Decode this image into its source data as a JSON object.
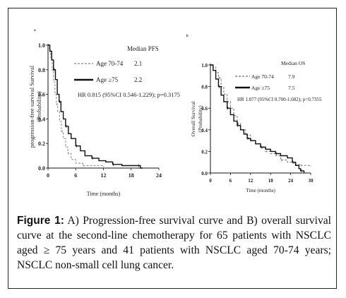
{
  "caption": {
    "label": "Figure 1:",
    "text": " A) Progression-free survival curve and B) overall survival curve at the second-line chemotherapy for 65 patients with NSCLC aged ≥ 75 years and 41 patients with NSCLC aged 70-74 years; NSCLC non-small cell lung cancer."
  },
  "chart_data": [
    {
      "type": "line",
      "panel_label": "A",
      "xlabel": "Time (months)",
      "ylabel": [
        "progression-free survival  Survival",
        "(Probability)"
      ],
      "xticks": [
        0,
        6,
        12,
        18,
        24
      ],
      "yticks": [
        0.0,
        0.2,
        0.4,
        0.6,
        0.8,
        1.0
      ],
      "ytick_labels": [
        "0.0",
        "0.2",
        "0.4",
        "0.6",
        "0.8",
        "1.0"
      ],
      "xlim": [
        0,
        24
      ],
      "ylim": [
        0,
        1
      ],
      "legend_position": "top-right",
      "legend_header": "Median PFS",
      "legend_line2_suffix": "ge ≥75",
      "hr_text": "HR 0.815 (95%CI 0.546-1.229); p=0.3175",
      "series": [
        {
          "name": "Age 70-74",
          "median_text": "2.1",
          "style": "dashed",
          "color": "#9a9a9a",
          "x": [
            0,
            0.3,
            0.6,
            0.9,
            1.2,
            1.5,
            1.8,
            2.1,
            2.5,
            2.9,
            3.3,
            3.8,
            4.3,
            5.0,
            6.0,
            7.5,
            9.5,
            12.0
          ],
          "y": [
            1.0,
            0.97,
            0.9,
            0.8,
            0.7,
            0.6,
            0.52,
            0.46,
            0.38,
            0.3,
            0.24,
            0.17,
            0.12,
            0.07,
            0.04,
            0.02,
            0.02,
            0.0
          ]
        },
        {
          "name": "Age ≥75",
          "median_text": "2.2",
          "style": "solid",
          "color": "#111111",
          "x": [
            0,
            0.4,
            0.8,
            1.2,
            1.6,
            2.0,
            2.4,
            2.8,
            3.3,
            3.8,
            4.4,
            5.0,
            6.0,
            7.0,
            8.0,
            9.5,
            11.0,
            12.5,
            14.0,
            16.0,
            18.0,
            19.5,
            20.0,
            20.5
          ],
          "y": [
            1.0,
            0.95,
            0.88,
            0.8,
            0.72,
            0.6,
            0.54,
            0.46,
            0.4,
            0.34,
            0.28,
            0.24,
            0.18,
            0.14,
            0.1,
            0.08,
            0.06,
            0.05,
            0.03,
            0.02,
            0.02,
            0.02,
            0.0,
            0.0
          ]
        }
      ]
    },
    {
      "type": "line",
      "panel_label": "B",
      "xlabel": "Time (months)",
      "ylabel": [
        "Overall  Survival",
        "(Probability)"
      ],
      "xticks": [
        0,
        6,
        12,
        18,
        24,
        30
      ],
      "yticks": [
        0.0,
        0.2,
        0.4,
        0.6,
        0.8,
        1.0
      ],
      "ytick_labels": [
        "0.0",
        "0.2",
        "0.4",
        "0.6",
        "0.8",
        "1.0"
      ],
      "xlim": [
        0,
        30
      ],
      "ylim": [
        0,
        1
      ],
      "legend_position": "top-right",
      "legend_header": "Median OS",
      "legend_line2_suffix": "ge ≥75",
      "hr_text": "HR 1.077 (95%CI 0.700-1.682); p=0.7355",
      "series": [
        {
          "name": "Age 70-74",
          "median_text": "7.9",
          "style": "dashed",
          "color": "#8a8a8a",
          "x": [
            0,
            0.8,
            1.6,
            2.4,
            3.2,
            4.0,
            5.0,
            6.0,
            7.0,
            8.0,
            9.0,
            10.5,
            12.0,
            13.5,
            15.0,
            16.5,
            18.0,
            19.5,
            21.0,
            23.0,
            25.0,
            27.0,
            30.0
          ],
          "y": [
            1.0,
            0.98,
            0.93,
            0.88,
            0.8,
            0.73,
            0.66,
            0.6,
            0.53,
            0.46,
            0.4,
            0.35,
            0.3,
            0.27,
            0.23,
            0.2,
            0.18,
            0.16,
            0.12,
            0.1,
            0.08,
            0.07,
            0.06
          ]
        },
        {
          "name": "Age ≥75",
          "median_text": "7.5",
          "style": "solid",
          "color": "#111111",
          "x": [
            0,
            0.8,
            1.6,
            2.4,
            3.2,
            4.0,
            5.0,
            6.0,
            7.0,
            8.0,
            9.0,
            10.0,
            11.0,
            12.0,
            13.5,
            15.0,
            16.5,
            18.0,
            19.5,
            21.0,
            23.0,
            24.5,
            25.5,
            26.5,
            27.0,
            28.0
          ],
          "y": [
            1.0,
            0.95,
            0.87,
            0.8,
            0.72,
            0.66,
            0.6,
            0.54,
            0.48,
            0.44,
            0.4,
            0.36,
            0.32,
            0.3,
            0.27,
            0.24,
            0.22,
            0.2,
            0.18,
            0.16,
            0.14,
            0.1,
            0.07,
            0.04,
            0.02,
            0.0
          ]
        }
      ]
    }
  ]
}
